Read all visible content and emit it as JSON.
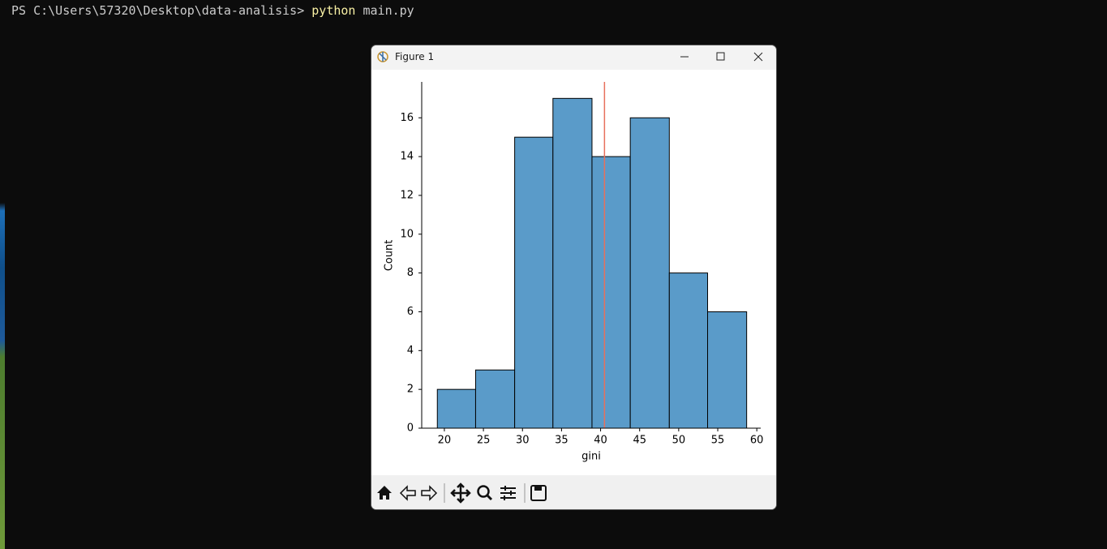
{
  "terminal": {
    "prompt": "PS C:\\Users\\57320\\Desktop\\data-analisis> ",
    "command": "python",
    "args": " main.py"
  },
  "window": {
    "title": "Figure 1"
  },
  "chart_data": {
    "type": "histogram",
    "x_label": "gini",
    "y_label": "Count",
    "bins": [
      19.1,
      24.0,
      29.0,
      33.9,
      38.9,
      43.8,
      48.8,
      53.7,
      58.7
    ],
    "values": [
      2,
      3,
      15,
      17,
      14,
      16,
      8,
      6
    ],
    "color": "#5a9bc9",
    "reference_line": {
      "x": 40.5,
      "color": "#e8705c"
    },
    "xlim": [
      17.1,
      60.5
    ],
    "xticks": [
      20,
      25,
      30,
      35,
      40,
      45,
      50,
      55,
      60
    ],
    "ylim": [
      0,
      17.85
    ],
    "yticks": [
      0,
      2,
      4,
      6,
      8,
      10,
      12,
      14,
      16
    ]
  }
}
